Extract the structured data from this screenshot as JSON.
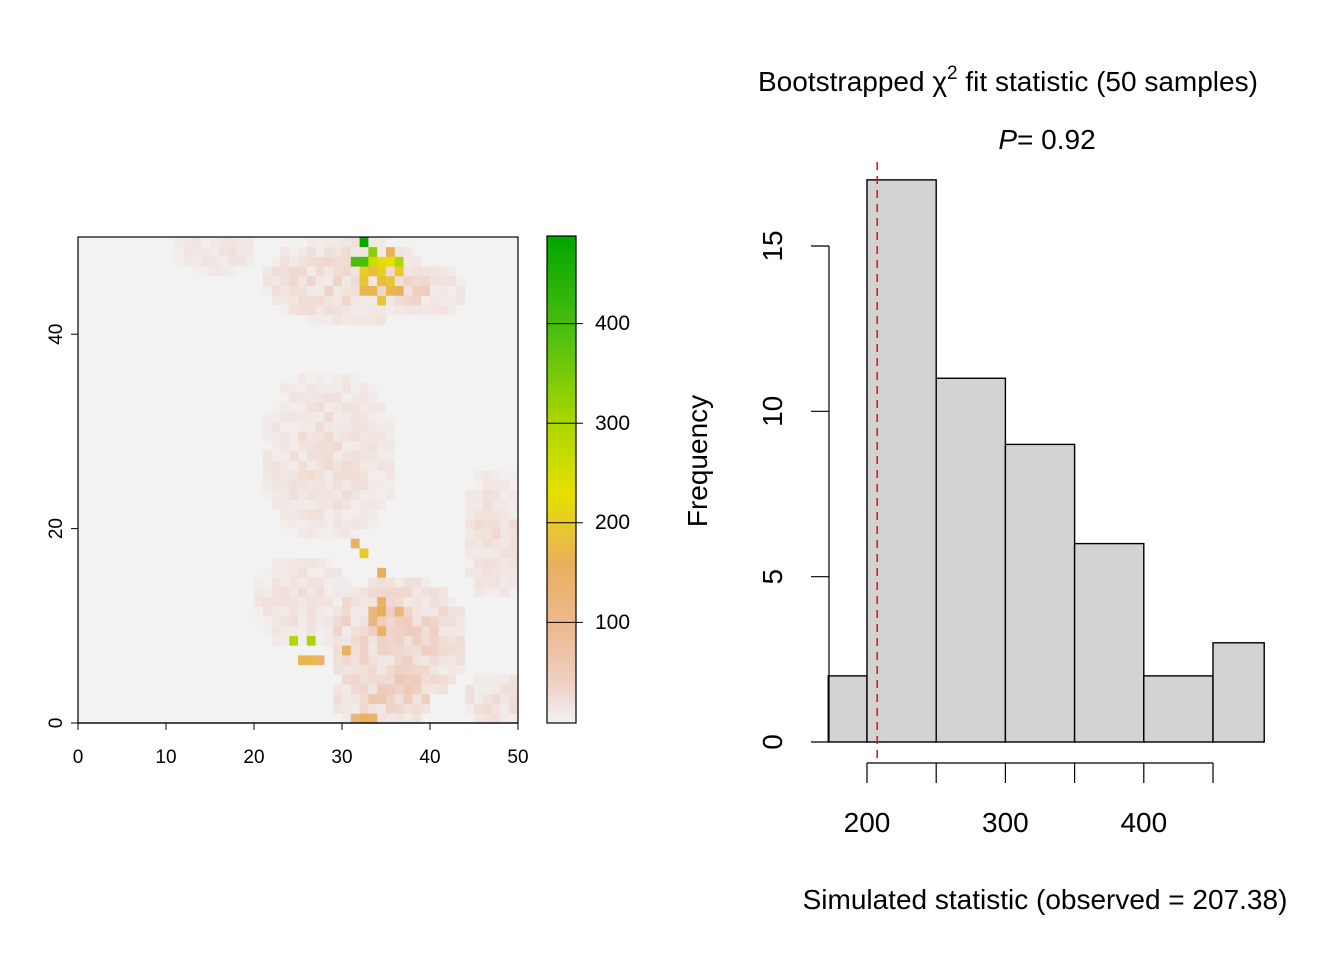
{
  "chart_data": [
    {
      "type": "heatmap",
      "xlim": [
        0,
        50
      ],
      "ylim": [
        0,
        50
      ],
      "xticks": [
        "0",
        "10",
        "20",
        "30",
        "40",
        "50"
      ],
      "yticks": [
        "0",
        "20",
        "40"
      ],
      "colorbar": {
        "ticks": [
          "100",
          "200",
          "300",
          "400"
        ],
        "range": [
          0,
          490
        ]
      },
      "grid": false,
      "hotspots": [
        {
          "x": 32,
          "y": 49,
          "v": 480
        },
        {
          "x": 33,
          "y": 48,
          "v": 330
        },
        {
          "x": 31,
          "y": 47,
          "v": 400
        },
        {
          "x": 32,
          "y": 47,
          "v": 400
        },
        {
          "x": 33,
          "y": 47,
          "v": 260
        },
        {
          "x": 34,
          "y": 47,
          "v": 220
        },
        {
          "x": 35,
          "y": 47,
          "v": 230
        },
        {
          "x": 36,
          "y": 47,
          "v": 290
        },
        {
          "x": 32,
          "y": 46,
          "v": 200
        },
        {
          "x": 33,
          "y": 46,
          "v": 180
        },
        {
          "x": 34,
          "y": 46,
          "v": 210
        },
        {
          "x": 36,
          "y": 46,
          "v": 200
        },
        {
          "x": 32,
          "y": 45,
          "v": 190
        },
        {
          "x": 34,
          "y": 45,
          "v": 180
        },
        {
          "x": 35,
          "y": 45,
          "v": 190
        },
        {
          "x": 32,
          "y": 44,
          "v": 170
        },
        {
          "x": 33,
          "y": 44,
          "v": 170
        },
        {
          "x": 35,
          "y": 44,
          "v": 170
        },
        {
          "x": 36,
          "y": 44,
          "v": 160
        },
        {
          "x": 34,
          "y": 43,
          "v": 190
        },
        {
          "x": 35,
          "y": 48,
          "v": 160
        },
        {
          "x": 31,
          "y": 18,
          "v": 150
        },
        {
          "x": 32,
          "y": 17,
          "v": 200
        },
        {
          "x": 34,
          "y": 15,
          "v": 160
        },
        {
          "x": 34,
          "y": 12,
          "v": 150
        },
        {
          "x": 34,
          "y": 11,
          "v": 160
        },
        {
          "x": 33,
          "y": 11,
          "v": 120
        },
        {
          "x": 33,
          "y": 10,
          "v": 120
        },
        {
          "x": 36,
          "y": 11,
          "v": 130
        },
        {
          "x": 34,
          "y": 9,
          "v": 150
        },
        {
          "x": 24,
          "y": 8,
          "v": 290
        },
        {
          "x": 26,
          "y": 8,
          "v": 300
        },
        {
          "x": 25,
          "y": 6,
          "v": 170
        },
        {
          "x": 26,
          "y": 6,
          "v": 170
        },
        {
          "x": 27,
          "y": 6,
          "v": 140
        },
        {
          "x": 30,
          "y": 7,
          "v": 150
        },
        {
          "x": 32,
          "y": 0,
          "v": 150
        },
        {
          "x": 33,
          "y": 0,
          "v": 140
        },
        {
          "x": 31,
          "y": 0,
          "v": 120
        }
      ]
    },
    {
      "type": "bar",
      "title_text": "Bootstrapped χ",
      "title_sup": "2",
      "title_rest": " fit statistic (50 samples)",
      "subtitle_italic": "P",
      "subtitle_rest": "= 0.92",
      "xlabel": "Simulated statistic (observed = 207.38)",
      "ylabel": "Frequency",
      "bins": [
        {
          "from": 172,
          "to": 200,
          "count": 2
        },
        {
          "from": 200,
          "to": 250,
          "count": 17
        },
        {
          "from": 250,
          "to": 300,
          "count": 11
        },
        {
          "from": 300,
          "to": 350,
          "count": 9
        },
        {
          "from": 350,
          "to": 400,
          "count": 6
        },
        {
          "from": 400,
          "to": 450,
          "count": 2
        },
        {
          "from": 450,
          "to": 487,
          "count": 3
        }
      ],
      "observed": 207.38,
      "xticks": [
        200,
        250,
        300,
        350,
        400,
        450
      ],
      "xticklabels": [
        "200",
        "",
        "300",
        "",
        "400",
        ""
      ],
      "yticks": [
        "0",
        "5",
        "10",
        "15"
      ],
      "ylim": [
        0,
        17
      ],
      "colors": {
        "bar": "#d3d3d3",
        "observed_line": "#e31a1c"
      }
    }
  ]
}
